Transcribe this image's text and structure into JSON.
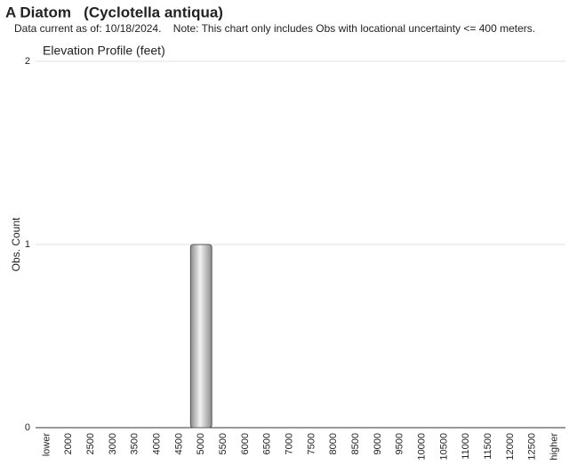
{
  "chart_data": {
    "type": "bar",
    "title": "A Diatom   (Cyclotella antiqua)",
    "subtitle": "Data current as of: 10/18/2024.    Note: This chart only includes Obs with locational uncertainty <= 400 meters.",
    "chart_title": "Elevation Profile (feet)",
    "y_label": "Obs. Count",
    "categories": [
      "lower",
      "2000",
      "2500",
      "3000",
      "3500",
      "4000",
      "4500",
      "5000",
      "5500",
      "6000",
      "6500",
      "7000",
      "7500",
      "8000",
      "8500",
      "9000",
      "9500",
      "10000",
      "10500",
      "11000",
      "11500",
      "12000",
      "12500",
      "higher"
    ],
    "values": [
      0,
      0,
      0,
      0,
      0,
      0,
      0,
      1,
      0,
      0,
      0,
      0,
      0,
      0,
      0,
      0,
      0,
      0,
      0,
      0,
      0,
      0,
      0,
      0
    ],
    "color": "#8c8c8c",
    "ylim": [
      0,
      2
    ],
    "yticks": [
      0,
      1,
      2
    ],
    "grid": true
  }
}
